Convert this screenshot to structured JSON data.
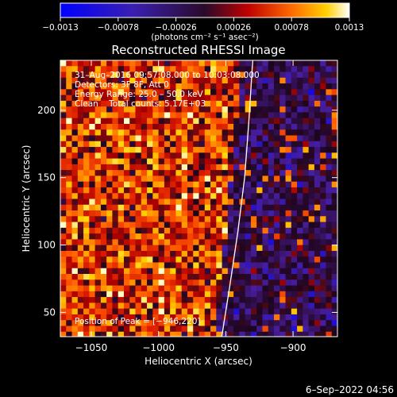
{
  "chart_data": {
    "type": "heatmap",
    "title": "Reconstructed RHESSI Image",
    "xlabel": "Heliocentric X (arcsec)",
    "ylabel": "Heliocentric Y (arcsec)",
    "xlim": [
      -1073,
      -867
    ],
    "ylim": [
      32,
      237
    ],
    "x_ticks": [
      -1050,
      -1000,
      -950,
      -900
    ],
    "x_tick_labels": [
      "−1050",
      "−1000",
      "−950",
      "−900"
    ],
    "y_ticks": [
      50,
      100,
      150,
      200
    ],
    "y_tick_labels": [
      "50",
      "100",
      "150",
      "200"
    ],
    "colorbar": {
      "range": [
        -0.0013,
        0.0013
      ],
      "ticks": [
        -0.0013,
        -0.00078,
        -0.00026,
        0.00026,
        0.00078,
        0.0013
      ],
      "tick_labels": [
        "−0.0013",
        "−0.00078",
        "−0.00026",
        "0.00026",
        "0.00078",
        "0.0013"
      ],
      "unit_label": "(photons cm⁻² s⁻¹ asec⁻²)"
    },
    "annotations": [
      "31–Aug–2016 09:57:08.000 to 10:03:08.000",
      "Detectors: 3F 8F, Att 0",
      "Energy Range: 25.0 – 50.0 keV",
      "Clean    Total counts: 5.17E+03"
    ],
    "peak_label": "Position of Peak = [−946,220]",
    "limb_curve": {
      "x": [
        -953,
        -947,
        -941,
        -936,
        -933,
        -930
      ],
      "y": [
        32,
        70,
        110,
        150,
        190,
        237
      ]
    },
    "grid": false,
    "legend": "none"
  },
  "footer": {
    "date": "6–Sep–2022 04:56"
  }
}
